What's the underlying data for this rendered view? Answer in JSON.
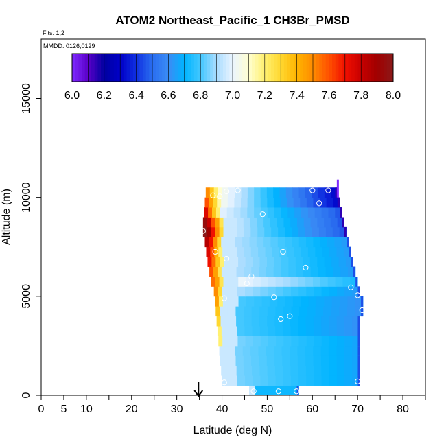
{
  "chart_data": {
    "type": "heatmap",
    "title": "ATOM2 Northeast_Pacific_1 CH3Br_PMSD",
    "flights_label": "Flts: 1,2",
    "dates_label": "MMDD: 0126,0129",
    "xlabel": "Latitude (deg N)",
    "ylabel": "Altitude (m)",
    "xlim": [
      0,
      85
    ],
    "ylim": [
      0,
      18000
    ],
    "x_ticks_labeled": [
      0,
      5,
      10,
      20,
      30,
      40,
      50,
      60,
      70,
      80
    ],
    "x_ticks_minor": [
      15,
      25,
      35,
      45,
      55,
      65,
      75,
      85
    ],
    "y_ticks": [
      0,
      5000,
      10000,
      15000
    ],
    "arrow_marker_latitude": 34.8,
    "colorbar": {
      "min": 6.0,
      "max": 8.0,
      "labels": [
        "6.0",
        "6.2",
        "6.4",
        "6.6",
        "6.8",
        "7.0",
        "7.2",
        "7.4",
        "7.6",
        "7.8",
        "8.0"
      ],
      "colors": [
        "#7f2aff",
        "#5a00c8",
        "#0000a0",
        "#0000c8",
        "#1030e0",
        "#2a6ef0",
        "#3a8cf5",
        "#00b4ff",
        "#44c8ff",
        "#a8dcff",
        "#eaf4ff",
        "#fffed0",
        "#fff070",
        "#ffd830",
        "#ffb400",
        "#ff8c00",
        "#ff5000",
        "#f01000",
        "#c80000",
        "#a00000",
        "#8b1a1a"
      ]
    },
    "curtain": {
      "alt_step": 500,
      "rows": [
        {
          "alt": 0,
          "left": 46.0,
          "right": 57.0,
          "edge": []
        },
        {
          "alt": 500,
          "left": 40.0,
          "right": 70.5,
          "edge": []
        },
        {
          "alt": 1000,
          "left": 39.8,
          "right": 70.5,
          "edge": []
        },
        {
          "alt": 1500,
          "left": 39.6,
          "right": 70.5,
          "edge": []
        },
        {
          "alt": 2000,
          "left": 39.4,
          "right": 70.5,
          "edge": []
        },
        {
          "alt": 2500,
          "left": 39.2,
          "right": 70.5,
          "edge": [
            7.2
          ]
        },
        {
          "alt": 3000,
          "left": 39.0,
          "right": 70.5,
          "edge": [
            7.2
          ]
        },
        {
          "alt": 3500,
          "left": 38.8,
          "right": 70.5,
          "edge": [
            7.3
          ]
        },
        {
          "alt": 4000,
          "left": 38.6,
          "right": 71.2,
          "edge": [
            7.35
          ]
        },
        {
          "alt": 4500,
          "left": 38.4,
          "right": 71.2,
          "edge": [
            7.45,
            7.2
          ]
        },
        {
          "alt": 5000,
          "left": 38.2,
          "right": 70.5,
          "edge": [
            7.5,
            7.3
          ]
        },
        {
          "alt": 5500,
          "left": 37.6,
          "right": 70.0,
          "edge": [
            7.55,
            7.45,
            7.25
          ]
        },
        {
          "alt": 6000,
          "left": 37.2,
          "right": 69.5,
          "edge": [
            7.6,
            7.45,
            7.25
          ]
        },
        {
          "alt": 6500,
          "left": 36.8,
          "right": 69.0,
          "edge": [
            7.7,
            7.55,
            7.35,
            7.2
          ]
        },
        {
          "alt": 7000,
          "left": 36.5,
          "right": 68.5,
          "edge": [
            7.75,
            7.6,
            7.4,
            7.2
          ]
        },
        {
          "alt": 7500,
          "left": 36.2,
          "right": 68.0,
          "edge": [
            7.85,
            7.7,
            7.5,
            7.3
          ]
        },
        {
          "alt": 8000,
          "left": 35.8,
          "right": 67.5,
          "edge": [
            8.0,
            7.9,
            7.7,
            7.5,
            7.3
          ]
        },
        {
          "alt": 8500,
          "left": 35.8,
          "right": 67.0,
          "edge": [
            7.95,
            7.8,
            7.6,
            7.45,
            7.25
          ]
        },
        {
          "alt": 9000,
          "left": 36.0,
          "right": 66.5,
          "edge": [
            7.75,
            7.55,
            7.35,
            7.2
          ]
        },
        {
          "alt": 9500,
          "left": 36.2,
          "right": 66.0,
          "edge": [
            7.6,
            7.45,
            7.3,
            7.15
          ]
        },
        {
          "alt": 10000,
          "left": 36.4,
          "right": 65.5,
          "edge": [
            7.5,
            7.35,
            7.2,
            7.1
          ]
        }
      ]
    },
    "points": [
      {
        "lat": 41.0,
        "alt": 10300
      },
      {
        "lat": 43.5,
        "alt": 10350
      },
      {
        "lat": 38.0,
        "alt": 10100
      },
      {
        "lat": 39.5,
        "alt": 10050
      },
      {
        "lat": 60.0,
        "alt": 10350
      },
      {
        "lat": 63.5,
        "alt": 10350
      },
      {
        "lat": 61.5,
        "alt": 9700
      },
      {
        "lat": 49.0,
        "alt": 9150
      },
      {
        "lat": 35.8,
        "alt": 8300
      },
      {
        "lat": 38.5,
        "alt": 7250
      },
      {
        "lat": 53.5,
        "alt": 7250
      },
      {
        "lat": 41.0,
        "alt": 6900
      },
      {
        "lat": 58.5,
        "alt": 6450
      },
      {
        "lat": 46.5,
        "alt": 6000
      },
      {
        "lat": 45.5,
        "alt": 5650
      },
      {
        "lat": 68.5,
        "alt": 5450
      },
      {
        "lat": 70.0,
        "alt": 5050
      },
      {
        "lat": 40.5,
        "alt": 4900
      },
      {
        "lat": 51.5,
        "alt": 4950
      },
      {
        "lat": 71.0,
        "alt": 4300
      },
      {
        "lat": 55.0,
        "alt": 4000
      },
      {
        "lat": 53.0,
        "alt": 3850
      },
      {
        "lat": 40.5,
        "alt": 650
      },
      {
        "lat": 70.0,
        "alt": 700
      },
      {
        "lat": 47.0,
        "alt": 200
      },
      {
        "lat": 52.5,
        "alt": 200
      },
      {
        "lat": 56.5,
        "alt": 200
      }
    ]
  }
}
